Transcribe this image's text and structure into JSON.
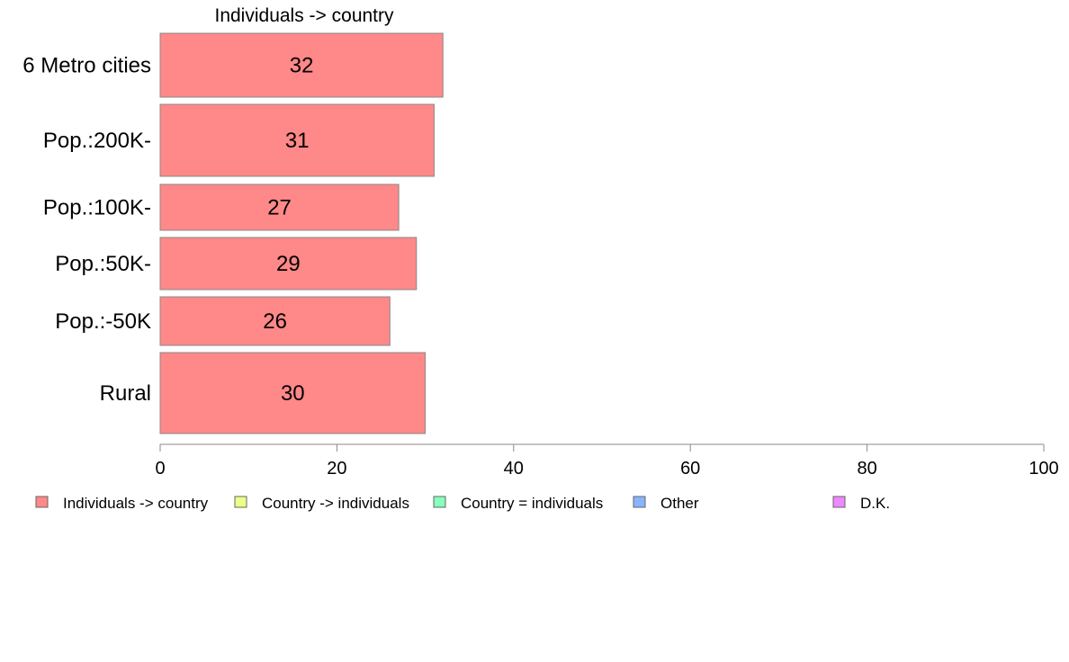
{
  "chart_data": {
    "type": "bar",
    "orientation": "horizontal",
    "title": "Individuals -> country",
    "categories": [
      "6 Metro cities",
      "Pop.:200K-",
      "Pop.:100K-",
      "Pop.:50K-",
      "Pop.:-50K",
      "Rural"
    ],
    "series": [
      {
        "name": "Individuals -> country",
        "color": "#ff8888",
        "values": [
          32,
          31,
          27,
          29,
          26,
          30
        ]
      }
    ],
    "xlim": [
      0,
      100
    ],
    "xticks": [
      0,
      20,
      40,
      60,
      80,
      100
    ],
    "grid": false,
    "legend_position": "bottom",
    "legend": [
      {
        "label": "Individuals -> country",
        "color": "#ff8888"
      },
      {
        "label": "Country -> individuals",
        "color": "#eeff88"
      },
      {
        "label": "Country = individuals",
        "color": "#88ffbb"
      },
      {
        "label": "Other",
        "color": "#88b4ff"
      },
      {
        "label": "D.K.",
        "color": "#ee88ff"
      }
    ]
  }
}
